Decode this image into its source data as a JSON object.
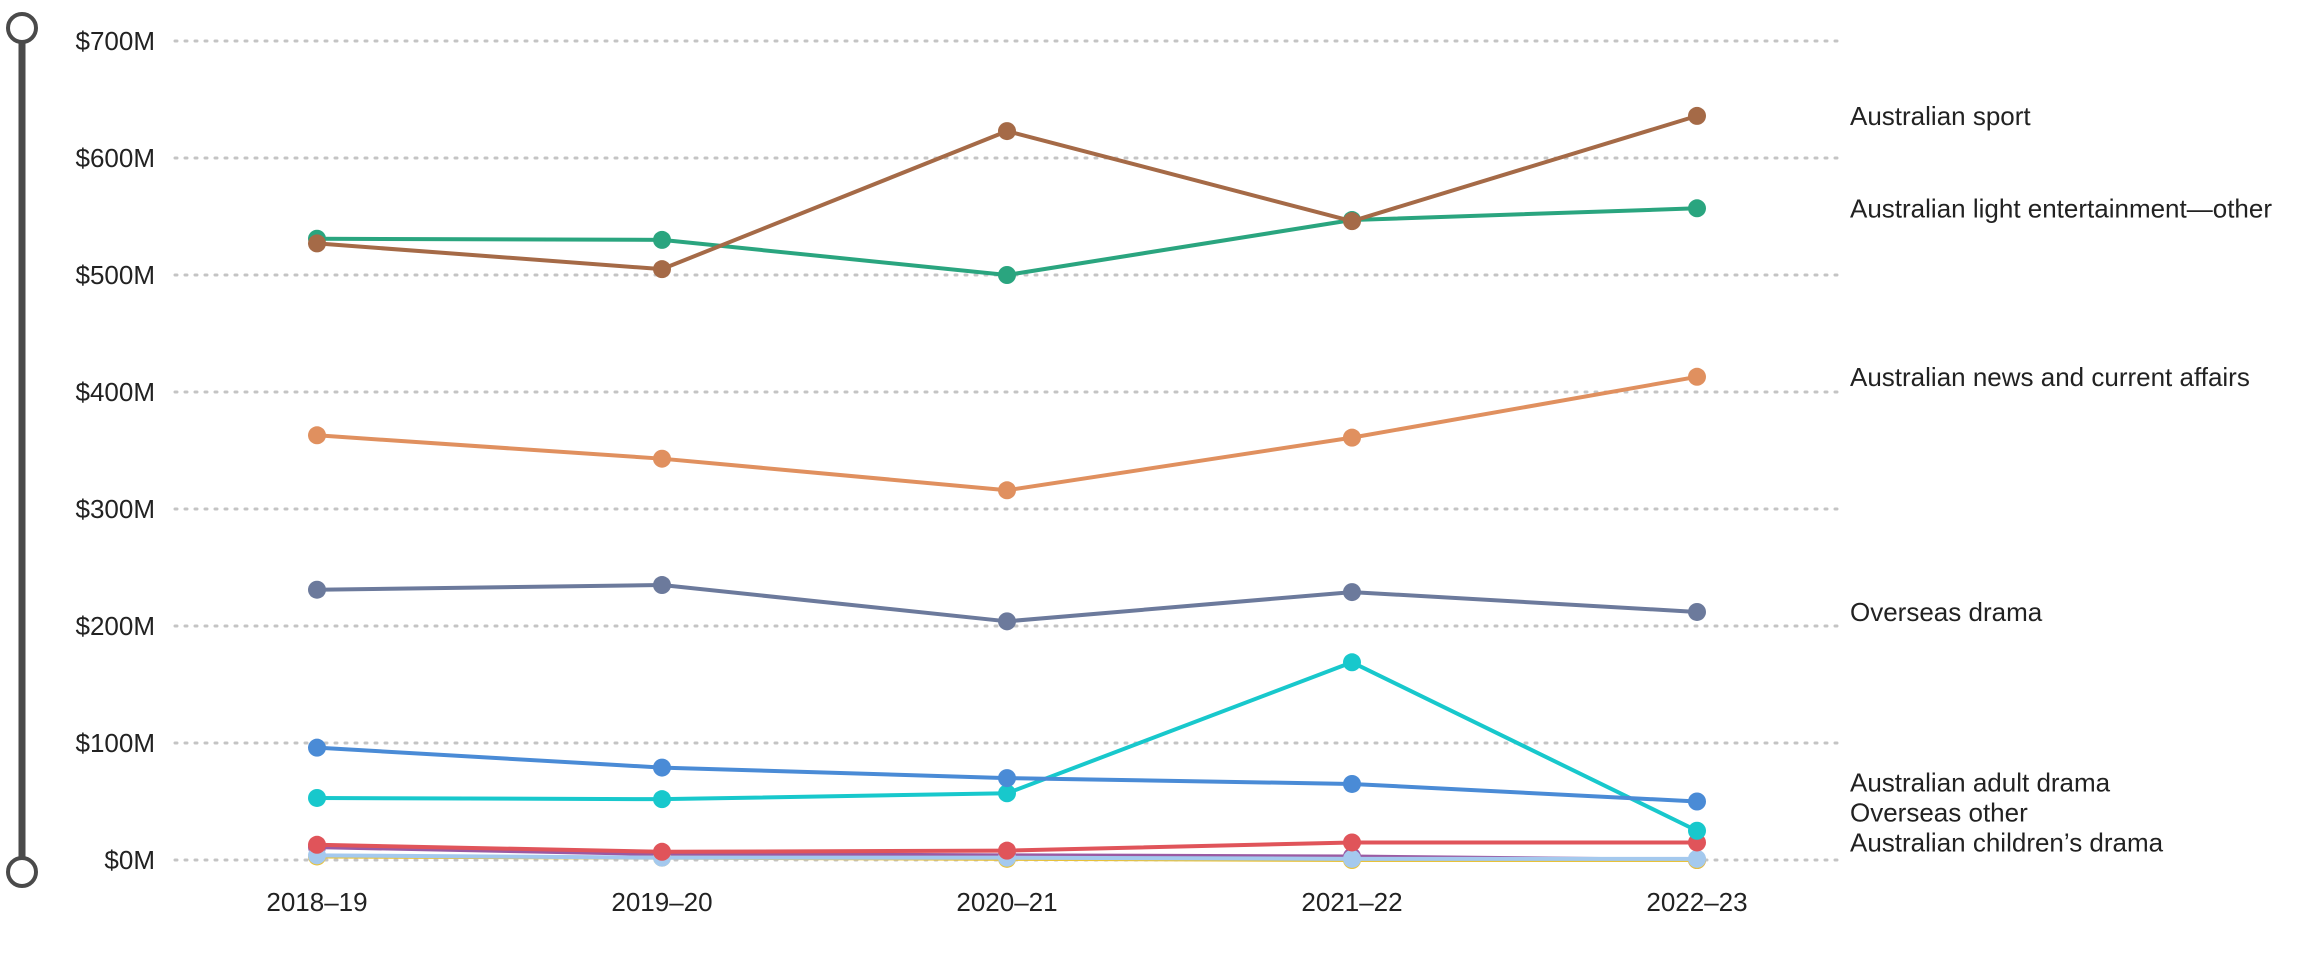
{
  "chart_data": {
    "type": "line",
    "title": "",
    "xlabel": "",
    "ylabel": "",
    "categories": [
      "2018–19",
      "2019–20",
      "2020–21",
      "2021–22",
      "2022–23"
    ],
    "y_ticks": [
      "$0M",
      "$100M",
      "$200M",
      "$300M",
      "$400M",
      "$500M",
      "$600M",
      "$700M"
    ],
    "ylim": [
      0,
      700
    ],
    "grid": "horizontal-dotted",
    "legend": "right-inline-labels",
    "series": [
      {
        "name": "Australian sport",
        "color": "#a56a47",
        "values": [
          527,
          505,
          623,
          546,
          636
        ]
      },
      {
        "name": "Australian light entertainment—other",
        "color": "#2aa57f",
        "values": [
          531,
          530,
          500,
          547,
          557
        ]
      },
      {
        "name": "Australian news and current affairs",
        "color": "#e0905f",
        "values": [
          363,
          343,
          316,
          361,
          413
        ]
      },
      {
        "name": "Overseas drama",
        "color": "#6c7a9c",
        "values": [
          231,
          235,
          204,
          229,
          212
        ]
      },
      {
        "name": "Australian adult drama",
        "color": "#4a8bd6",
        "values": [
          96,
          79,
          70,
          65,
          50
        ]
      },
      {
        "name": "Overseas other",
        "color": "#18c8cc",
        "values": [
          53,
          52,
          57,
          169,
          25
        ]
      },
      {
        "name": "Australian children’s drama",
        "color": "#e0545a",
        "values": [
          13,
          7,
          8,
          15,
          15
        ]
      },
      {
        "name": "",
        "color": "#a4c9ee",
        "values": [
          4,
          2,
          2,
          1,
          1
        ]
      },
      {
        "name": "",
        "color": "#e8c23a",
        "values": [
          3,
          2,
          1,
          0,
          0
        ]
      },
      {
        "name": "",
        "color": "#9a5aa3",
        "values": [
          11,
          5,
          4,
          3,
          0
        ]
      }
    ]
  }
}
